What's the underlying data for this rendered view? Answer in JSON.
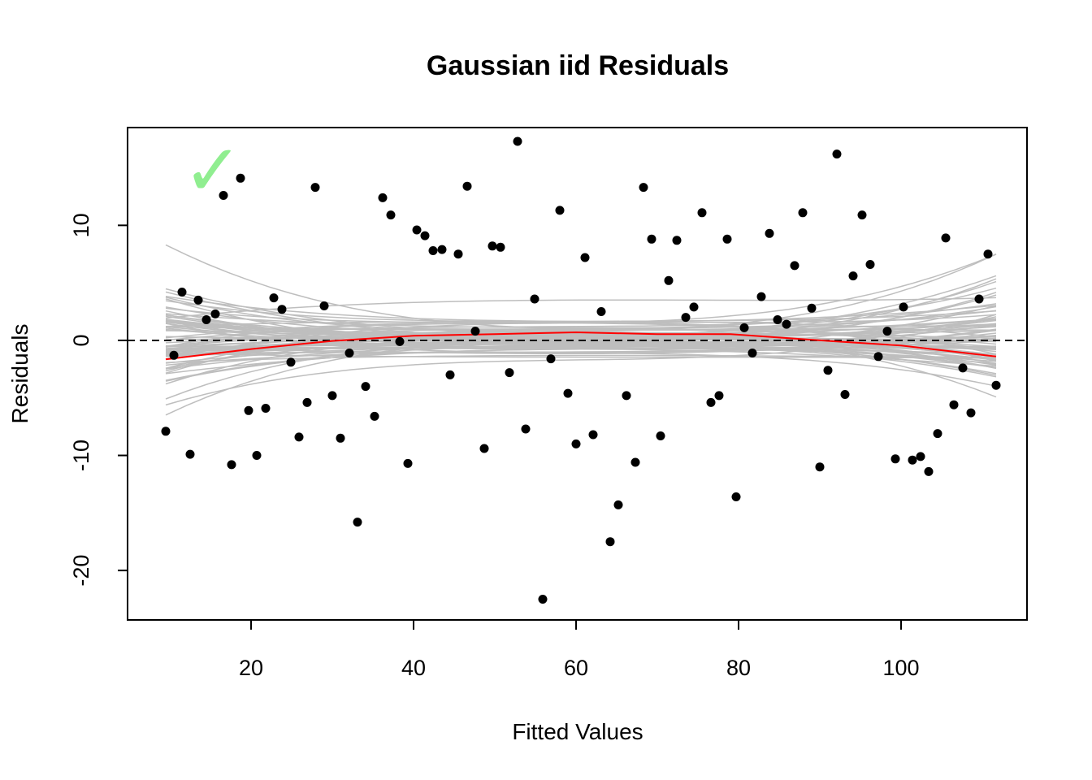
{
  "chart_data": {
    "type": "scatter",
    "title": "Gaussian iid Residuals",
    "xlabel": "Fitted Values",
    "ylabel": "Residuals",
    "xlim": [
      4.8,
      115.5
    ],
    "ylim": [
      -24.3,
      18.5
    ],
    "xticks": [
      20,
      40,
      60,
      80,
      100
    ],
    "yticks": [
      -20,
      -10,
      0,
      10
    ],
    "reference_line": 0,
    "check_mark": "✓",
    "check_mark_color": "#90ee90",
    "points_color": "#000000",
    "smooth_color": "#ff0000",
    "envelope_color": "#bebebe",
    "x": [
      9.5,
      10.5,
      11.5,
      12.5,
      13.5,
      14.5,
      15.6,
      16.6,
      17.6,
      18.7,
      19.7,
      20.7,
      21.8,
      22.8,
      23.8,
      24.9,
      25.9,
      26.9,
      27.9,
      29.0,
      30.0,
      31.0,
      32.1,
      33.1,
      34.1,
      35.2,
      36.2,
      37.2,
      38.3,
      39.3,
      40.4,
      41.4,
      42.4,
      43.5,
      44.5,
      45.5,
      46.6,
      47.6,
      48.7,
      49.7,
      50.7,
      51.8,
      52.8,
      53.8,
      54.9,
      55.9,
      56.9,
      58.0,
      59.0,
      60.0,
      61.1,
      62.1,
      63.1,
      64.2,
      65.2,
      66.2,
      67.3,
      68.3,
      69.3,
      70.4,
      71.4,
      72.4,
      73.5,
      74.5,
      75.5,
      76.6,
      77.6,
      78.6,
      79.7,
      80.7,
      81.7,
      82.8,
      83.8,
      84.8,
      85.9,
      86.9,
      87.9,
      89.0,
      90.0,
      91.0,
      92.1,
      93.1,
      94.1,
      95.2,
      96.2,
      97.2,
      98.3,
      99.3,
      100.3,
      101.4,
      102.4,
      103.4,
      104.5,
      105.5,
      106.5,
      107.6,
      108.6,
      109.6,
      110.7,
      111.7
    ],
    "y": [
      -7.9,
      -1.3,
      4.2,
      -9.9,
      3.5,
      1.8,
      2.3,
      12.6,
      -10.8,
      14.1,
      -6.1,
      -10.0,
      -5.9,
      3.7,
      2.7,
      -1.9,
      -8.4,
      -5.4,
      13.3,
      3.0,
      -4.8,
      -8.5,
      -1.1,
      -15.8,
      -4.0,
      -6.6,
      12.4,
      10.9,
      -0.1,
      -10.7,
      9.6,
      9.1,
      7.8,
      7.9,
      -3.0,
      7.5,
      13.4,
      0.8,
      -9.4,
      8.2,
      8.1,
      -2.8,
      17.3,
      -7.7,
      3.6,
      -22.5,
      -1.6,
      11.3,
      -4.6,
      -9.0,
      7.2,
      -8.2,
      2.5,
      -17.5,
      -14.3,
      -4.8,
      -10.6,
      13.3,
      8.8,
      -8.3,
      5.2,
      8.7,
      2.0,
      2.9,
      11.1,
      -5.4,
      -4.8,
      8.8,
      -13.6,
      1.1,
      -1.1,
      3.8,
      9.3,
      1.8,
      1.4,
      6.5,
      11.1,
      2.8,
      -11.0,
      -2.6,
      16.2,
      -4.7,
      5.6,
      10.9,
      6.6,
      -1.4,
      0.8,
      -10.3,
      2.9,
      -10.4,
      -10.1,
      -11.4,
      -8.1,
      8.9,
      -5.6,
      -2.4,
      -6.3,
      3.6,
      7.5,
      -3.9
    ],
    "smooth": {
      "x": [
        9.5,
        20.0,
        30.0,
        40.0,
        50.0,
        60.0,
        70.0,
        79.0,
        90.0,
        100.0,
        111.7
      ],
      "y": [
        -1.65,
        -0.75,
        -0.05,
        0.4,
        0.55,
        0.7,
        0.55,
        0.55,
        0.0,
        -0.45,
        -1.4
      ]
    },
    "envelope": {
      "count": 80,
      "x_range": [
        9.5,
        111.7
      ]
    }
  }
}
